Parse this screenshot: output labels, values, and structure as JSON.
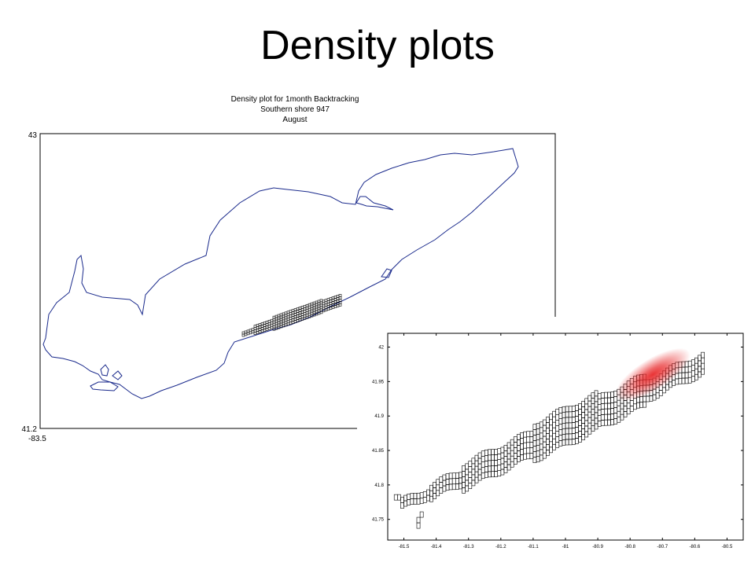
{
  "slide": {
    "title": "Density plots"
  },
  "chart_data": [
    {
      "type": "line",
      "title_lines": [
        "Density plot for 1month Backtracking",
        "Southern shore 947",
        "August"
      ],
      "ytick_labels": [
        "43",
        "41.2"
      ],
      "xtick_labels": [
        "-83.5"
      ],
      "xlim": [
        -83.5,
        -78.8
      ],
      "ylim": [
        41.2,
        43
      ],
      "series": [
        {
          "values": []
        }
      ],
      "colors": {
        "coastline": "#1a2a8c",
        "cells": "#000000",
        "axes": "#000000"
      }
    },
    {
      "type": "heatmap",
      "xlim": [
        -81.55,
        -80.45
      ],
      "ylim": [
        41.72,
        42.02
      ],
      "xtick_values": [
        -81.5,
        -81.4,
        -81.3,
        -81.2,
        -81.1,
        -81,
        -80.9,
        -80.8,
        -80.7,
        -80.6,
        -80.5
      ],
      "xtick_labels": [
        "-81.5",
        "-81.4",
        "-81.3",
        "-81.2",
        "-81.1",
        "-81",
        "-80.9",
        "-80.8",
        "-80.7",
        "-80.6",
        "-80.5"
      ],
      "ytick_values": [
        42,
        41.95,
        41.9,
        41.85,
        41.8,
        41.75
      ],
      "ytick_labels": [
        "42",
        "41.95",
        "41.9",
        "41.85",
        "41.8",
        "41.75"
      ],
      "cell_size": [
        0.01,
        0.008
      ],
      "density_peak": {
        "x": -80.73,
        "y": 41.96
      },
      "colors": {
        "cells": "#000000",
        "density": "#e8282a"
      }
    }
  ]
}
